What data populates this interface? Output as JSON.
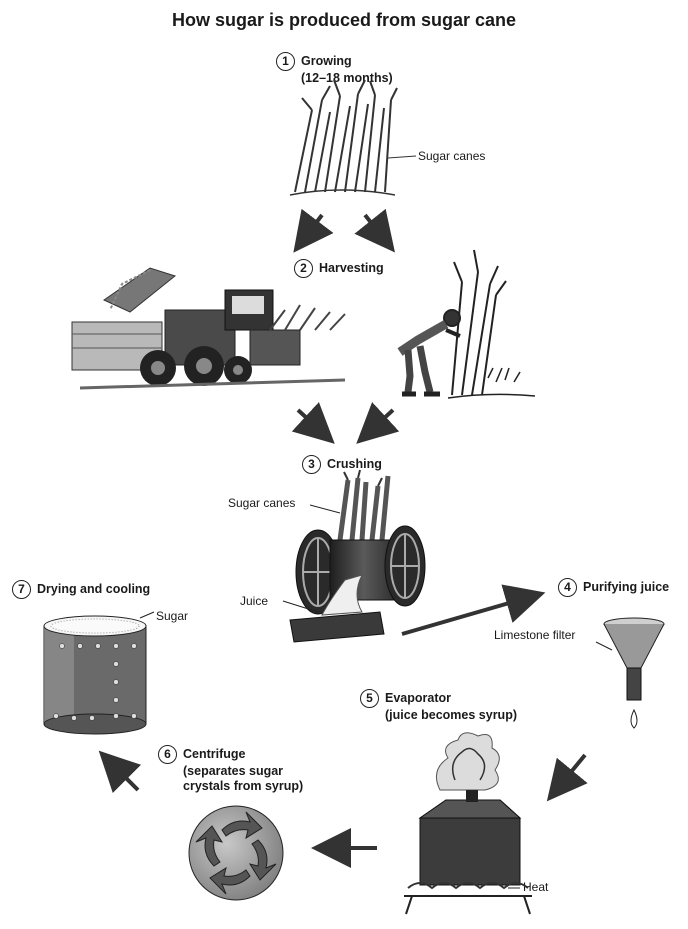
{
  "title": "How sugar is produced from sugar cane",
  "steps": [
    {
      "num": "1",
      "title": "Growing",
      "detail": "(12–18 months)"
    },
    {
      "num": "2",
      "title": "Harvesting",
      "detail": ""
    },
    {
      "num": "3",
      "title": "Crushing",
      "detail": ""
    },
    {
      "num": "4",
      "title": "Purifying juice",
      "detail": ""
    },
    {
      "num": "5",
      "title": "Evaporator",
      "detail": "(juice becomes syrup)"
    },
    {
      "num": "6",
      "title": "Centrifuge",
      "detail": "(separates sugar",
      "detail2": "crystals from syrup)"
    },
    {
      "num": "7",
      "title": "Drying and cooling",
      "detail": ""
    }
  ],
  "labels": {
    "sugar_canes_1": "Sugar canes",
    "sugar_canes_3": "Sugar canes",
    "juice": "Juice",
    "limestone_filter": "Limestone filter",
    "sugar": "Sugar",
    "heat": "Heat"
  },
  "colors": {
    "ink": "#1a1a1a",
    "dark_metal": "#3a3a3a",
    "mid_gray": "#8a8a8a",
    "light_gray": "#cfcfcf"
  }
}
